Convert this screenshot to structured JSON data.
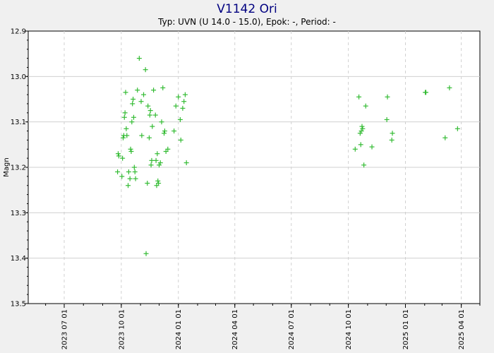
{
  "chart_data": {
    "type": "scatter",
    "title": "V1142 Ori",
    "subtitle": "Typ: UVN (U 14.0 - 15.0), Epok: -, Period: -",
    "xlabel": "",
    "ylabel": "Magn",
    "ylim": [
      12.9,
      13.5
    ],
    "y_inverted": true,
    "xlim": [
      "2023-05-04",
      "2025-05-01"
    ],
    "grid": true,
    "yticks": [
      "12.9",
      "13.0",
      "13.1",
      "13.2",
      "13.3",
      "13.4",
      "13.5"
    ],
    "xticks": [
      "2023 07 01",
      "2023 10 01",
      "2024 01 01",
      "2024 04 01",
      "2024 07 01",
      "2024 10 01",
      "2025 01 01",
      "2025 04 01"
    ],
    "marker_color": "#33bb33",
    "series": [
      {
        "points": [
          [
            "2023-09-25",
            13.21
          ],
          [
            "2023-09-26",
            13.17
          ],
          [
            "2023-09-27",
            13.175
          ],
          [
            "2023-10-02",
            13.22
          ],
          [
            "2023-10-03",
            13.18
          ],
          [
            "2023-10-04",
            13.135
          ],
          [
            "2023-10-05",
            13.13
          ],
          [
            "2023-10-06",
            13.09
          ],
          [
            "2023-10-07",
            13.08
          ],
          [
            "2023-10-08",
            13.035
          ],
          [
            "2023-10-09",
            13.115
          ],
          [
            "2023-10-10",
            13.13
          ],
          [
            "2023-10-12",
            13.24
          ],
          [
            "2023-10-13",
            13.21
          ],
          [
            "2023-10-15",
            13.225
          ],
          [
            "2023-10-16",
            13.16
          ],
          [
            "2023-10-17",
            13.165
          ],
          [
            "2023-10-18",
            13.1
          ],
          [
            "2023-10-19",
            13.06
          ],
          [
            "2023-10-20",
            13.05
          ],
          [
            "2023-10-21",
            13.09
          ],
          [
            "2023-10-22",
            13.2
          ],
          [
            "2023-10-23",
            13.21
          ],
          [
            "2023-10-24",
            13.225
          ],
          [
            "2023-10-27",
            13.03
          ],
          [
            "2023-10-30",
            12.96
          ],
          [
            "2023-11-02",
            13.055
          ],
          [
            "2023-11-03",
            13.13
          ],
          [
            "2023-11-06",
            13.04
          ],
          [
            "2023-11-09",
            12.985
          ],
          [
            "2023-11-10",
            13.39
          ],
          [
            "2023-11-12",
            13.235
          ],
          [
            "2023-11-13",
            13.065
          ],
          [
            "2023-11-15",
            13.135
          ],
          [
            "2023-11-16",
            13.085
          ],
          [
            "2023-11-17",
            13.075
          ],
          [
            "2023-11-18",
            13.195
          ],
          [
            "2023-11-19",
            13.185
          ],
          [
            "2023-11-20",
            13.11
          ],
          [
            "2023-11-22",
            13.03
          ],
          [
            "2023-11-25",
            13.085
          ],
          [
            "2023-11-26",
            13.185
          ],
          [
            "2023-11-27",
            13.24
          ],
          [
            "2023-11-28",
            13.17
          ],
          [
            "2023-11-29",
            13.23
          ],
          [
            "2023-11-30",
            13.235
          ],
          [
            "2023-12-01",
            13.195
          ],
          [
            "2023-12-03",
            13.19
          ],
          [
            "2023-12-05",
            13.1
          ],
          [
            "2023-12-07",
            13.025
          ],
          [
            "2023-12-09",
            13.125
          ],
          [
            "2023-12-10",
            13.12
          ],
          [
            "2023-12-12",
            13.165
          ],
          [
            "2023-12-15",
            13.16
          ],
          [
            "2023-12-25",
            13.12
          ],
          [
            "2023-12-28",
            13.065
          ],
          [
            "2024-01-01",
            13.045
          ],
          [
            "2024-01-04",
            13.095
          ],
          [
            "2024-01-05",
            13.14
          ],
          [
            "2024-01-08",
            13.07
          ],
          [
            "2024-01-10",
            13.055
          ],
          [
            "2024-01-12",
            13.04
          ],
          [
            "2024-01-14",
            13.19
          ],
          [
            "2024-10-12",
            13.16
          ],
          [
            "2024-10-18",
            13.045
          ],
          [
            "2024-10-20",
            13.125
          ],
          [
            "2024-10-21",
            13.15
          ],
          [
            "2024-10-22",
            13.12
          ],
          [
            "2024-10-23",
            13.11
          ],
          [
            "2024-10-24",
            13.115
          ],
          [
            "2024-10-26",
            13.195
          ],
          [
            "2024-10-29",
            13.065
          ],
          [
            "2024-11-08",
            13.155
          ],
          [
            "2024-12-02",
            13.095
          ],
          [
            "2024-12-03",
            13.045
          ],
          [
            "2024-12-10",
            13.14
          ],
          [
            "2024-12-11",
            13.125
          ],
          [
            "2025-02-02",
            13.035
          ],
          [
            "2025-02-03",
            13.035
          ],
          [
            "2025-03-06",
            13.135
          ],
          [
            "2025-03-13",
            13.025
          ],
          [
            "2025-03-26",
            13.115
          ]
        ]
      }
    ]
  }
}
